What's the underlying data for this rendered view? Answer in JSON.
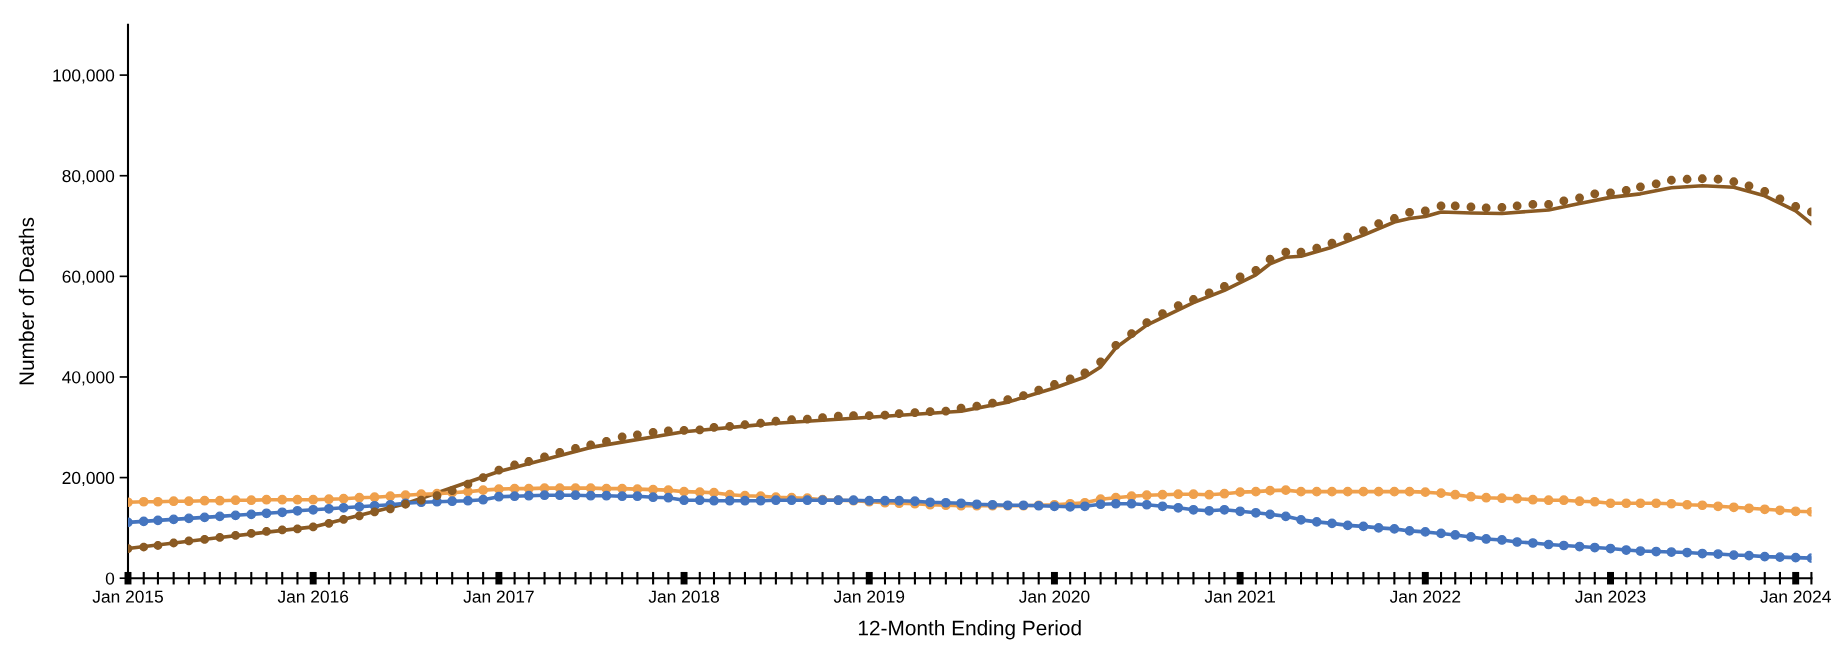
{
  "chart_data": {
    "type": "line",
    "xlabel": "12-Month Ending Period",
    "ylabel": "Number of Deaths",
    "x": [
      "2015-01",
      "2015-02",
      "2015-03",
      "2015-04",
      "2015-05",
      "2015-06",
      "2015-07",
      "2015-08",
      "2015-09",
      "2015-10",
      "2015-11",
      "2015-12",
      "2016-01",
      "2016-02",
      "2016-03",
      "2016-04",
      "2016-05",
      "2016-06",
      "2016-07",
      "2016-08",
      "2016-09",
      "2016-10",
      "2016-11",
      "2016-12",
      "2017-01",
      "2017-02",
      "2017-03",
      "2017-04",
      "2017-05",
      "2017-06",
      "2017-07",
      "2017-08",
      "2017-09",
      "2017-10",
      "2017-11",
      "2017-12",
      "2018-01",
      "2018-02",
      "2018-03",
      "2018-04",
      "2018-05",
      "2018-06",
      "2018-07",
      "2018-08",
      "2018-09",
      "2018-10",
      "2018-11",
      "2018-12",
      "2019-01",
      "2019-02",
      "2019-03",
      "2019-04",
      "2019-05",
      "2019-06",
      "2019-07",
      "2019-08",
      "2019-09",
      "2019-10",
      "2019-11",
      "2019-12",
      "2020-01",
      "2020-02",
      "2020-03",
      "2020-04",
      "2020-05",
      "2020-06",
      "2020-07",
      "2020-08",
      "2020-09",
      "2020-10",
      "2020-11",
      "2020-12",
      "2021-01",
      "2021-02",
      "2021-03",
      "2021-04",
      "2021-05",
      "2021-06",
      "2021-07",
      "2021-08",
      "2021-09",
      "2021-10",
      "2021-11",
      "2021-12",
      "2022-01",
      "2022-02",
      "2022-03",
      "2022-04",
      "2022-05",
      "2022-06",
      "2022-07",
      "2022-08",
      "2022-09",
      "2022-10",
      "2022-11",
      "2022-12",
      "2023-01",
      "2023-02",
      "2023-03",
      "2023-04",
      "2023-05",
      "2023-06",
      "2023-07",
      "2023-08",
      "2023-09",
      "2023-10",
      "2023-11",
      "2023-12",
      "2024-01",
      "2024-02"
    ],
    "series": [
      {
        "color": "#8a5a23",
        "marker": "none",
        "x": [
          "2015-01",
          "2015-07",
          "2016-01",
          "2016-07",
          "2017-01",
          "2017-07",
          "2018-01",
          "2018-07",
          "2019-01",
          "2019-07",
          "2019-10",
          "2020-01",
          "2020-03",
          "2020-04",
          "2020-05",
          "2020-07",
          "2020-10",
          "2020-12",
          "2021-02",
          "2021-03",
          "2021-04",
          "2021-05",
          "2021-07",
          "2021-09",
          "2021-11",
          "2021-12",
          "2022-01",
          "2022-02",
          "2022-04",
          "2022-06",
          "2022-09",
          "2022-11",
          "2023-01",
          "2023-03",
          "2023-05",
          "2023-07",
          "2023-09",
          "2023-11",
          "2024-01",
          "2024-02"
        ],
        "values": [
          5900,
          8100,
          10200,
          14800,
          21200,
          26000,
          29100,
          30800,
          32000,
          33200,
          35000,
          37800,
          40000,
          42000,
          45800,
          50300,
          54800,
          57200,
          60300,
          62500,
          63800,
          64000,
          65800,
          68200,
          70800,
          71500,
          71900,
          72800,
          72600,
          72500,
          73200,
          74500,
          75700,
          76400,
          77600,
          78000,
          77700,
          76000,
          73000,
          70500
        ]
      },
      {
        "type": "scatter",
        "color": "#8a5a23",
        "marker": "circle",
        "values": [
          5900,
          6200,
          6500,
          7000,
          7400,
          7700,
          8100,
          8500,
          8900,
          9300,
          9600,
          9800,
          10200,
          10900,
          11700,
          12400,
          13200,
          13800,
          14700,
          15500,
          16400,
          17400,
          18700,
          20000,
          21500,
          22500,
          23200,
          24100,
          25000,
          25800,
          26500,
          27200,
          28100,
          28500,
          29000,
          29300,
          29400,
          29500,
          30000,
          30200,
          30500,
          30800,
          31200,
          31500,
          31600,
          31900,
          32200,
          32300,
          32300,
          32400,
          32700,
          32900,
          33100,
          33200,
          33800,
          34200,
          34800,
          35500,
          36300,
          37400,
          38500,
          39600,
          40800,
          43000,
          46300,
          48600,
          50800,
          52600,
          54200,
          55400,
          56700,
          58000,
          59900,
          61200,
          63400,
          64800,
          64800,
          65600,
          66600,
          67800,
          69100,
          70500,
          71500,
          72700,
          73000,
          74000,
          74000,
          73800,
          73600,
          73700,
          74000,
          74300,
          74300,
          75000,
          75600,
          76400,
          76600,
          77100,
          77800,
          78400,
          79100,
          79300,
          79400,
          79300,
          78800,
          78000,
          76900,
          75400,
          73900,
          72800
        ]
      },
      {
        "color": "#efa04c",
        "marker": "circle",
        "values": [
          15100,
          15200,
          15200,
          15300,
          15300,
          15400,
          15400,
          15500,
          15500,
          15600,
          15600,
          15600,
          15600,
          15700,
          15800,
          16000,
          16100,
          16300,
          16500,
          16700,
          16800,
          17000,
          17200,
          17500,
          17700,
          17800,
          17800,
          17900,
          17900,
          17900,
          17900,
          17800,
          17800,
          17700,
          17600,
          17500,
          17200,
          17100,
          17000,
          16600,
          16400,
          16300,
          16100,
          16000,
          15900,
          15600,
          15500,
          15400,
          15200,
          15000,
          14900,
          14800,
          14600,
          14500,
          14400,
          14400,
          14400,
          14400,
          14400,
          14500,
          14600,
          14800,
          15000,
          15700,
          16000,
          16300,
          16500,
          16600,
          16700,
          16700,
          16600,
          16800,
          17100,
          17200,
          17400,
          17500,
          17200,
          17200,
          17200,
          17200,
          17200,
          17200,
          17200,
          17200,
          17100,
          16900,
          16600,
          16200,
          16000,
          15900,
          15800,
          15600,
          15500,
          15500,
          15300,
          15200,
          14900,
          14900,
          14900,
          14900,
          14800,
          14600,
          14500,
          14300,
          14100,
          13900,
          13700,
          13500,
          13300,
          13200
        ]
      },
      {
        "color": "#4575bf",
        "marker": "circle",
        "values": [
          11100,
          11300,
          11500,
          11700,
          11900,
          12100,
          12300,
          12500,
          12700,
          12900,
          13100,
          13400,
          13600,
          13800,
          14000,
          14200,
          14400,
          14600,
          14900,
          15100,
          15200,
          15300,
          15400,
          15600,
          16200,
          16300,
          16400,
          16500,
          16500,
          16500,
          16400,
          16400,
          16300,
          16300,
          16100,
          16000,
          15500,
          15500,
          15400,
          15400,
          15400,
          15400,
          15500,
          15500,
          15500,
          15500,
          15500,
          15500,
          15400,
          15400,
          15400,
          15300,
          15100,
          15000,
          14900,
          14700,
          14600,
          14500,
          14500,
          14400,
          14300,
          14200,
          14300,
          14700,
          14800,
          14800,
          14600,
          14300,
          14000,
          13600,
          13400,
          13600,
          13300,
          13000,
          12700,
          12300,
          11600,
          11200,
          10900,
          10500,
          10300,
          10000,
          9800,
          9400,
          9200,
          8900,
          8600,
          8200,
          7800,
          7600,
          7200,
          7000,
          6700,
          6500,
          6300,
          6100,
          5900,
          5600,
          5400,
          5300,
          5200,
          5100,
          4900,
          4800,
          4600,
          4500,
          4300,
          4200,
          4100,
          4000
        ]
      }
    ],
    "xlim": [
      "2015-01",
      "2024-02"
    ],
    "xticks": [
      {
        "value": "2015-01",
        "label": "Jan 2015"
      },
      {
        "value": "2015-02",
        "label": null
      },
      {
        "value": "2015-03",
        "label": null
      },
      {
        "value": "2015-04",
        "label": null
      },
      {
        "value": "2015-05",
        "label": null
      },
      {
        "value": "2015-06",
        "label": null
      },
      {
        "value": "2015-07",
        "label": null
      },
      {
        "value": "2015-08",
        "label": null
      },
      {
        "value": "2015-09",
        "label": null
      },
      {
        "value": "2015-10",
        "label": null
      },
      {
        "value": "2015-11",
        "label": null
      },
      {
        "value": "2015-12",
        "label": null
      },
      {
        "value": "2016-01",
        "label": "Jan 2016"
      },
      {
        "value": "2016-02",
        "label": null
      },
      {
        "value": "2016-03",
        "label": null
      },
      {
        "value": "2016-04",
        "label": null
      },
      {
        "value": "2016-05",
        "label": null
      },
      {
        "value": "2016-06",
        "label": null
      },
      {
        "value": "2016-07",
        "label": null
      },
      {
        "value": "2016-08",
        "label": null
      },
      {
        "value": "2016-09",
        "label": null
      },
      {
        "value": "2016-10",
        "label": null
      },
      {
        "value": "2016-11",
        "label": null
      },
      {
        "value": "2016-12",
        "label": null
      },
      {
        "value": "2017-01",
        "label": "Jan 2017"
      },
      {
        "value": "2017-02",
        "label": null
      },
      {
        "value": "2017-03",
        "label": null
      },
      {
        "value": "2017-04",
        "label": null
      },
      {
        "value": "2017-05",
        "label": null
      },
      {
        "value": "2017-06",
        "label": null
      },
      {
        "value": "2017-07",
        "label": null
      },
      {
        "value": "2017-08",
        "label": null
      },
      {
        "value": "2017-09",
        "label": null
      },
      {
        "value": "2017-10",
        "label": null
      },
      {
        "value": "2017-11",
        "label": null
      },
      {
        "value": "2017-12",
        "label": null
      },
      {
        "value": "2018-01",
        "label": "Jan 2018"
      },
      {
        "value": "2018-02",
        "label": null
      },
      {
        "value": "2018-03",
        "label": null
      },
      {
        "value": "2018-04",
        "label": null
      },
      {
        "value": "2018-05",
        "label": null
      },
      {
        "value": "2018-06",
        "label": null
      },
      {
        "value": "2018-07",
        "label": null
      },
      {
        "value": "2018-08",
        "label": null
      },
      {
        "value": "2018-09",
        "label": null
      },
      {
        "value": "2018-10",
        "label": null
      },
      {
        "value": "2018-11",
        "label": null
      },
      {
        "value": "2018-12",
        "label": null
      },
      {
        "value": "2019-01",
        "label": "Jan 2019"
      },
      {
        "value": "2019-02",
        "label": null
      },
      {
        "value": "2019-03",
        "label": null
      },
      {
        "value": "2019-04",
        "label": null
      },
      {
        "value": "2019-05",
        "label": null
      },
      {
        "value": "2019-06",
        "label": null
      },
      {
        "value": "2019-07",
        "label": null
      },
      {
        "value": "2019-08",
        "label": null
      },
      {
        "value": "2019-09",
        "label": null
      },
      {
        "value": "2019-10",
        "label": null
      },
      {
        "value": "2019-11",
        "label": null
      },
      {
        "value": "2019-12",
        "label": null
      },
      {
        "value": "2020-01",
        "label": "Jan 2020"
      },
      {
        "value": "2020-02",
        "label": null
      },
      {
        "value": "2020-03",
        "label": null
      },
      {
        "value": "2020-04",
        "label": null
      },
      {
        "value": "2020-05",
        "label": null
      },
      {
        "value": "2020-06",
        "label": null
      },
      {
        "value": "2020-07",
        "label": null
      },
      {
        "value": "2020-08",
        "label": null
      },
      {
        "value": "2020-09",
        "label": null
      },
      {
        "value": "2020-10",
        "label": null
      },
      {
        "value": "2020-11",
        "label": null
      },
      {
        "value": "2020-12",
        "label": null
      },
      {
        "value": "2021-01",
        "label": "Jan 2021"
      },
      {
        "value": "2021-02",
        "label": null
      },
      {
        "value": "2021-03",
        "label": null
      },
      {
        "value": "2021-04",
        "label": null
      },
      {
        "value": "2021-05",
        "label": null
      },
      {
        "value": "2021-06",
        "label": null
      },
      {
        "value": "2021-07",
        "label": null
      },
      {
        "value": "2021-08",
        "label": null
      },
      {
        "value": "2021-09",
        "label": null
      },
      {
        "value": "2021-10",
        "label": null
      },
      {
        "value": "2021-11",
        "label": null
      },
      {
        "value": "2021-12",
        "label": null
      },
      {
        "value": "2022-01",
        "label": "Jan 2022"
      },
      {
        "value": "2022-02",
        "label": null
      },
      {
        "value": "2022-03",
        "label": null
      },
      {
        "value": "2022-04",
        "label": null
      },
      {
        "value": "2022-05",
        "label": null
      },
      {
        "value": "2022-06",
        "label": null
      },
      {
        "value": "2022-07",
        "label": null
      },
      {
        "value": "2022-08",
        "label": null
      },
      {
        "value": "2022-09",
        "label": null
      },
      {
        "value": "2022-10",
        "label": null
      },
      {
        "value": "2022-11",
        "label": null
      },
      {
        "value": "2022-12",
        "label": null
      },
      {
        "value": "2023-01",
        "label": "Jan 2023"
      },
      {
        "value": "2023-02",
        "label": null
      },
      {
        "value": "2023-03",
        "label": null
      },
      {
        "value": "2023-04",
        "label": null
      },
      {
        "value": "2023-05",
        "label": null
      },
      {
        "value": "2023-06",
        "label": null
      },
      {
        "value": "2023-07",
        "label": null
      },
      {
        "value": "2023-08",
        "label": null
      },
      {
        "value": "2023-09",
        "label": null
      },
      {
        "value": "2023-10",
        "label": null
      },
      {
        "value": "2023-11",
        "label": null
      },
      {
        "value": "2023-12",
        "label": null
      },
      {
        "value": "2024-01",
        "label": "Jan 2024"
      },
      {
        "value": "2024-02",
        "label": null
      }
    ],
    "ylim": [
      0,
      110000
    ],
    "yticks": [
      0,
      {
        "value": 20000,
        "label": "20,000"
      },
      {
        "value": 40000,
        "label": "40,000"
      },
      {
        "value": 60000,
        "label": "60,000"
      },
      {
        "value": 80000,
        "label": "80,000"
      },
      {
        "value": 100000,
        "label": "100,000"
      }
    ],
    "grid": false
  }
}
